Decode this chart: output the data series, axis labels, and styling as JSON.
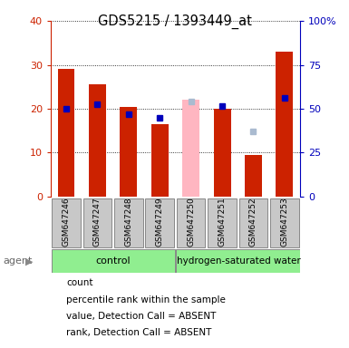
{
  "title": "GDS5215 / 1393449_at",
  "samples": [
    "GSM647246",
    "GSM647247",
    "GSM647248",
    "GSM647249",
    "GSM647250",
    "GSM647251",
    "GSM647252",
    "GSM647253"
  ],
  "bar_values": [
    29.0,
    25.5,
    20.5,
    16.5,
    null,
    20.0,
    9.5,
    33.0
  ],
  "absent_value": [
    null,
    null,
    null,
    null,
    22.0,
    null,
    null,
    null
  ],
  "rank_pct": [
    50.0,
    52.5,
    47.0,
    45.0,
    null,
    51.5,
    null,
    56.0
  ],
  "absent_rank_pct": [
    null,
    null,
    null,
    null,
    54.0,
    null,
    37.0,
    null
  ],
  "ylim": [
    0,
    40
  ],
  "y2lim": [
    0,
    100
  ],
  "yticks": [
    0,
    10,
    20,
    30,
    40
  ],
  "y2ticks": [
    0,
    25,
    50,
    75,
    100
  ],
  "y2tick_labels": [
    "0",
    "25",
    "50",
    "75",
    "100%"
  ],
  "red_color": "#CC2200",
  "blue_color": "#0000BB",
  "pink_color": "#FFB6C1",
  "lblue_color": "#AABBD0",
  "grey_color": "#C8C8C8",
  "green_color": "#90EE90",
  "legend_items": [
    {
      "label": "count",
      "color": "#CC2200"
    },
    {
      "label": "percentile rank within the sample",
      "color": "#0000BB"
    },
    {
      "label": "value, Detection Call = ABSENT",
      "color": "#FFB6C1"
    },
    {
      "label": "rank, Detection Call = ABSENT",
      "color": "#AABBD0"
    }
  ]
}
